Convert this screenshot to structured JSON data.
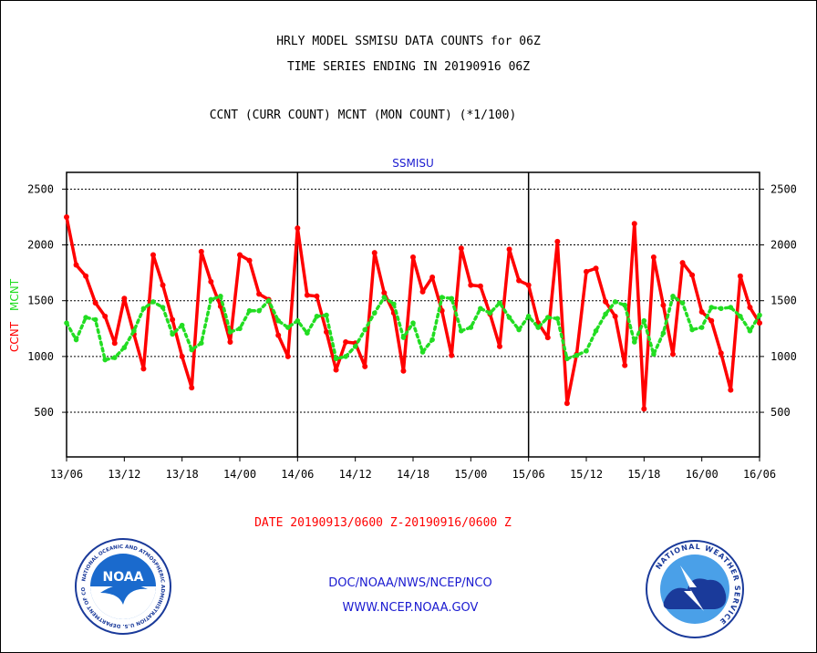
{
  "header": {
    "title_line1": "HRLY MODEL SSMISU DATA COUNTS for 06Z",
    "title_line2": "TIME SERIES ENDING IN 20190916 06Z",
    "subtitle": "CCNT (CURR COUNT) MCNT (MON COUNT) (*1/100)"
  },
  "chart_data": {
    "type": "line",
    "title": "SSMISU",
    "ylabel_ccnt": "CCNT",
    "ylabel_mcnt": "MCNT",
    "ylim": [
      100,
      2650
    ],
    "yticks": [
      500,
      1000,
      1500,
      2000,
      2500
    ],
    "ytick_labels": [
      "500",
      "1000",
      "1500",
      "2000",
      "2500"
    ],
    "x_tick_labels": [
      "13/06",
      "13/12",
      "13/18",
      "14/00",
      "14/06",
      "14/12",
      "14/18",
      "15/00",
      "15/06",
      "15/12",
      "15/18",
      "16/00",
      "16/06"
    ],
    "x_range_hours": [
      0,
      72
    ],
    "grid": true,
    "series": [
      {
        "name": "CCNT",
        "color": "#ff0000",
        "x": [
          0,
          1,
          2,
          3,
          4,
          5,
          6,
          7,
          8,
          9,
          10,
          11,
          12,
          13,
          14,
          15,
          16,
          17,
          18,
          19,
          20,
          21,
          22,
          23,
          24,
          25,
          26,
          27,
          28,
          29,
          30,
          31,
          32,
          33,
          34,
          35,
          36,
          37,
          38,
          39,
          40,
          41,
          42,
          43,
          44,
          45,
          46,
          47,
          48,
          49,
          50,
          51,
          52,
          53,
          54,
          55,
          56,
          57,
          58,
          59,
          60,
          61,
          62,
          63,
          64,
          65,
          66,
          67,
          68,
          69,
          70,
          71,
          72
        ],
        "values": [
          2250,
          1820,
          1720,
          1480,
          1360,
          1120,
          1520,
          1200,
          890,
          1910,
          1640,
          1330,
          1000,
          720,
          1940,
          1670,
          1450,
          1130,
          1910,
          1860,
          1560,
          1510,
          1190,
          1000,
          2150,
          1550,
          1540,
          1220,
          880,
          1130,
          1120,
          910,
          1930,
          1570,
          1390,
          870,
          1890,
          1580,
          1710,
          1410,
          1010,
          1970,
          1640,
          1630,
          1380,
          1090,
          1960,
          1680,
          1640,
          1300,
          1170,
          2030,
          580,
          1020,
          1760,
          1790,
          1490,
          1360,
          920,
          2190,
          530,
          1890,
          1460,
          1020,
          1840,
          1730,
          1400,
          1320,
          1030,
          700,
          1720,
          1440,
          1300
        ]
      },
      {
        "name": "MCNT",
        "color": "#22dd22",
        "x": [
          0,
          1,
          2,
          3,
          4,
          5,
          6,
          7,
          8,
          9,
          10,
          11,
          12,
          13,
          14,
          15,
          16,
          17,
          18,
          19,
          20,
          21,
          22,
          23,
          24,
          25,
          26,
          27,
          28,
          29,
          30,
          31,
          32,
          33,
          34,
          35,
          36,
          37,
          38,
          39,
          40,
          41,
          42,
          43,
          44,
          45,
          46,
          47,
          48,
          49,
          50,
          51,
          52,
          53,
          54,
          55,
          56,
          57,
          58,
          59,
          60,
          61,
          62,
          63,
          64,
          65,
          66,
          67,
          68,
          69,
          70,
          71,
          72
        ],
        "values": [
          1300,
          1150,
          1350,
          1330,
          970,
          990,
          1080,
          1230,
          1430,
          1490,
          1440,
          1200,
          1280,
          1060,
          1120,
          1510,
          1540,
          1220,
          1250,
          1410,
          1410,
          1500,
          1320,
          1260,
          1320,
          1210,
          1360,
          1370,
          980,
          1000,
          1090,
          1240,
          1390,
          1530,
          1470,
          1170,
          1300,
          1040,
          1150,
          1530,
          1520,
          1230,
          1260,
          1430,
          1390,
          1480,
          1350,
          1240,
          1360,
          1260,
          1350,
          1340,
          980,
          1010,
          1050,
          1230,
          1380,
          1490,
          1460,
          1130,
          1320,
          1020,
          1210,
          1540,
          1480,
          1240,
          1260,
          1440,
          1430,
          1440,
          1360,
          1230,
          1370
        ]
      }
    ]
  },
  "date_range": "DATE 20190913/0600 Z-20190916/0600 Z",
  "footer": {
    "line1": "DOC/NOAA/NWS/NCEP/NCO",
    "line2": "WWW.NCEP.NOAA.GOV"
  },
  "logos": {
    "noaa_center_text": "NOAA",
    "noaa_ring_text": "NATIONAL OCEANIC AND ATMOSPHERIC ADMINISTRATION U.S. DEPARTMENT OF COMMERCE",
    "nws_ring_text": "NATIONAL WEATHER SERVICE"
  },
  "colors": {
    "ccnt": "#ff0000",
    "mcnt": "#22dd22",
    "footer_text": "#1a1ad0",
    "plot_title": "#1a1ad0"
  }
}
